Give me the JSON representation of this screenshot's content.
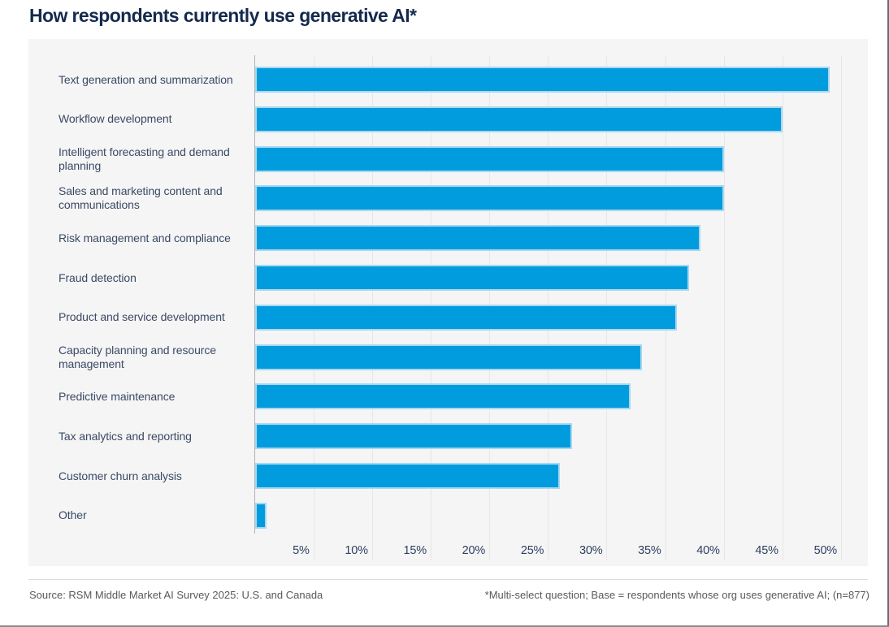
{
  "title": "How respondents currently use generative AI*",
  "footer": {
    "source": "Source: RSM Middle Market AI Survey 2025: U.S. and Canada",
    "footnote": "*Multi-select question; Base = respondents whose org uses generative AI; (n=877)"
  },
  "colors": {
    "bar_fill": "#009CDE",
    "bar_edge": "#a8d8f0",
    "title_navy": "#142a4d",
    "label_navy": "#3b4a63",
    "panel_background": "#f5f5f6",
    "gridline": "#e6e6e8",
    "axis_line": "#b2b2b5",
    "footer_gray": "#58595b"
  },
  "chart_data": {
    "type": "bar",
    "orientation": "horizontal",
    "title": "How respondents currently use generative AI*",
    "xlabel": "",
    "ylabel": "",
    "unit": "%",
    "xlim": [
      0,
      50
    ],
    "grid": true,
    "categories": [
      "Text generation and summarization",
      "Workflow development",
      "Intelligent forecasting and demand\nplanning",
      "Sales and marketing content and\ncommunications",
      "Risk management and compliance",
      "Fraud detection",
      "Product and service development",
      "Capacity planning and resource\nmanagement",
      "Predictive maintenance",
      "Tax analytics and reporting",
      "Customer churn analysis",
      "Other"
    ],
    "values": [
      49,
      45,
      40,
      40,
      38,
      37,
      36,
      33,
      32,
      27,
      26,
      1
    ],
    "x_ticks": [
      "5%",
      "10%",
      "15%",
      "20%",
      "25%",
      "30%",
      "35%",
      "40%",
      "45%",
      "50%"
    ]
  }
}
